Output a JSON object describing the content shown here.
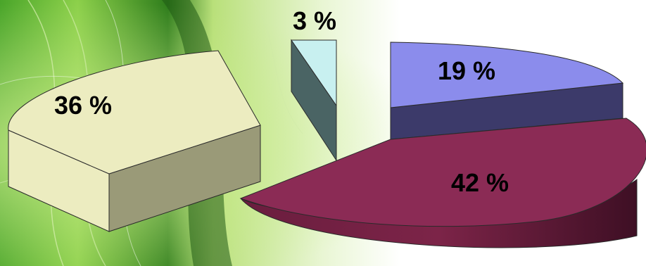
{
  "chart_data": {
    "type": "pie",
    "title": "",
    "legend": "none",
    "slices": [
      {
        "label": "19 %",
        "value": 19,
        "color_top": "#8b8cec",
        "color_side": "#3c3a6a"
      },
      {
        "label": "42 %",
        "value": 42,
        "color_top": "#8b2b55",
        "color_side": "#5a1a35"
      },
      {
        "label": "3 %",
        "value": 3,
        "color_top": "#c8f0f0",
        "color_side": "#4a6464"
      },
      {
        "label": "36 %",
        "value": 36,
        "color_top": "#ececc0",
        "color_side": "#9a9a78"
      }
    ]
  },
  "background": {
    "base_color": "#ffffff",
    "accent_green": "#5cb82e",
    "accent_dark_green": "#1f5a14"
  }
}
